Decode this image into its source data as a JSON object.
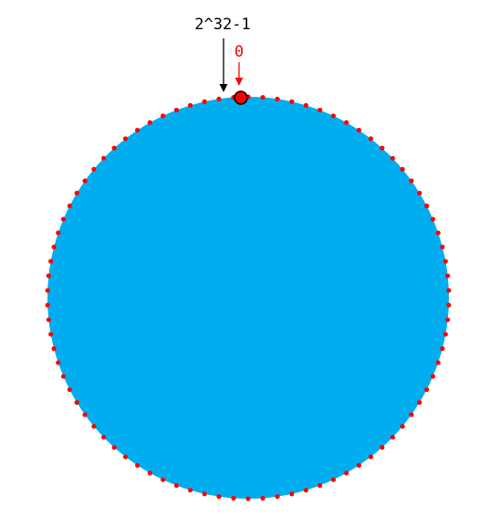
{
  "diagram": {
    "ring": {
      "fill_color": "#00ADEF",
      "dot_color": "#FF0000",
      "node_count": 86
    },
    "labels": {
      "max_value": "2^32-1",
      "zero_value": "0"
    },
    "colors": {
      "max_arrow": "#000000",
      "zero_arrow": "#FF0000",
      "marker_fill": "#FF0000",
      "marker_stroke": "#000000"
    }
  }
}
